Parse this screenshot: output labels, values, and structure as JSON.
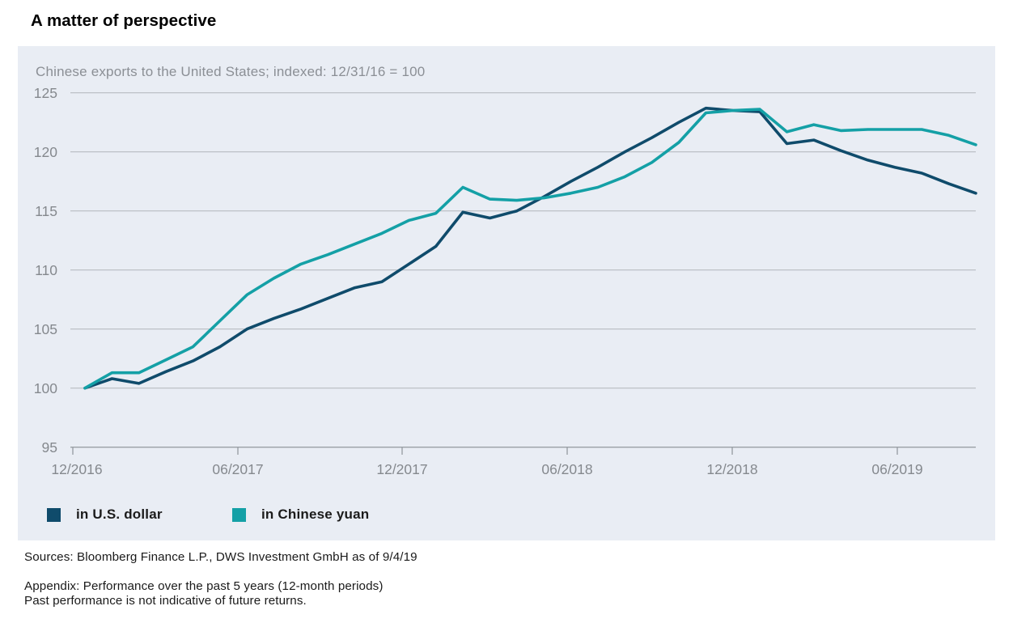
{
  "chart_data": {
    "type": "line",
    "title": "A matter of perspective",
    "subtitle": "Chinese exports to the United States; indexed: 12/31/16 = 100",
    "x_tick_labels": [
      "12/2016",
      "06/2017",
      "12/2017",
      "06/2018",
      "12/2018",
      "06/2019"
    ],
    "y_tick_labels": [
      "125",
      "120",
      "115",
      "110",
      "105",
      "100",
      "95"
    ],
    "ylim": [
      95,
      125.8
    ],
    "grid": "horizontal",
    "legend_position": "bottom-left",
    "x_months": [
      "12/2016",
      "01/2017",
      "02/2017",
      "03/2017",
      "04/2017",
      "05/2017",
      "06/2017",
      "07/2017",
      "08/2017",
      "09/2017",
      "10/2017",
      "11/2017",
      "12/2017",
      "01/2018",
      "02/2018",
      "03/2018",
      "04/2018",
      "05/2018",
      "06/2018",
      "07/2018",
      "08/2018",
      "09/2018",
      "10/2018",
      "11/2018",
      "12/2018",
      "01/2019",
      "02/2019",
      "03/2019",
      "04/2019",
      "05/2019",
      "06/2019",
      "07/2019",
      "08/2019",
      "09/2019"
    ],
    "series": [
      {
        "name": "in U.S. dollar",
        "color": "#0f4b6b",
        "values": [
          100.0,
          100.8,
          100.4,
          101.4,
          102.3,
          103.5,
          105.0,
          105.9,
          106.7,
          107.6,
          108.5,
          109.0,
          110.5,
          112.0,
          114.9,
          114.4,
          115.0,
          116.2,
          117.5,
          118.7,
          120.0,
          121.2,
          122.5,
          123.7,
          123.5,
          123.4,
          120.7,
          121.0,
          120.1,
          119.3,
          118.7,
          118.2,
          117.3,
          116.5
        ]
      },
      {
        "name": "in Chinese yuan",
        "color": "#14a0a6",
        "values": [
          100.0,
          101.3,
          101.3,
          102.4,
          103.5,
          105.7,
          107.9,
          109.3,
          110.5,
          111.3,
          112.2,
          113.1,
          114.2,
          114.8,
          117.0,
          116.0,
          115.9,
          116.1,
          116.5,
          117.0,
          117.9,
          119.1,
          120.8,
          123.3,
          123.5,
          123.6,
          121.7,
          122.3,
          121.8,
          121.9,
          121.9,
          121.9,
          121.4,
          120.6
        ]
      }
    ]
  },
  "footer": {
    "sources": "Sources: Bloomberg Finance L.P., DWS Investment GmbH as of 9/4/19",
    "appendix": "Appendix: Performance over the past 5 years (12-month periods)",
    "disclaimer": "Past performance is not indicative of future returns."
  }
}
